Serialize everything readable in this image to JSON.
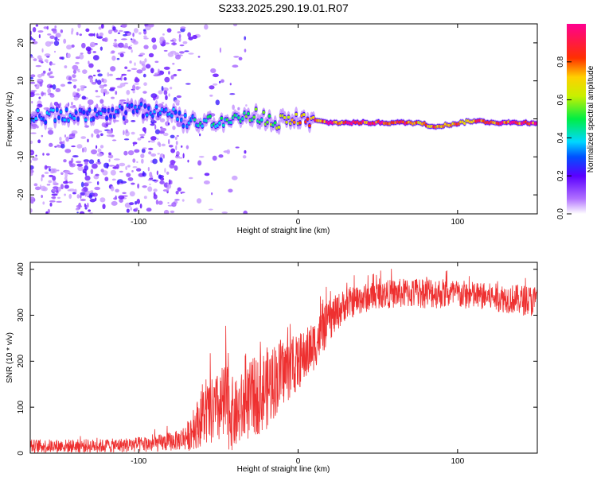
{
  "title": "S233.2025.290.19.01.R07",
  "chart_data": [
    {
      "type": "heatmap",
      "name": "spectrogram",
      "xlabel": "Height of straight line (km)",
      "ylabel": "Frequency (Hz)",
      "xlim": [
        -168,
        150
      ],
      "ylim": [
        -25,
        25
      ],
      "xticks": [
        -100,
        0,
        100
      ],
      "yticks": [
        -20,
        -10,
        0,
        10,
        20
      ],
      "colorbar": {
        "label": "Normalized spectral amplitude",
        "range": [
          0,
          1
        ],
        "ticks": [
          0.0,
          0.2,
          0.4,
          0.6,
          0.8
        ],
        "tick_labels": [
          "0.0",
          "0.2",
          "0.4",
          "0.6",
          "0.8"
        ]
      },
      "carrier_track": [
        {
          "x": -120,
          "f": 0.8,
          "amp": 0.35
        },
        {
          "x": -100,
          "f": 2.5,
          "amp": 0.3
        },
        {
          "x": -80,
          "f": 1.5,
          "amp": 0.35
        },
        {
          "x": -70,
          "f": -1.0,
          "amp": 0.4
        },
        {
          "x": -60,
          "f": -0.5,
          "amp": 0.45
        },
        {
          "x": -40,
          "f": -0.5,
          "amp": 0.5
        },
        {
          "x": -25,
          "f": 1.0,
          "amp": 0.55
        },
        {
          "x": -15,
          "f": -1.0,
          "amp": 0.6
        },
        {
          "x": 0,
          "f": 0.0,
          "amp": 0.75
        },
        {
          "x": 20,
          "f": -1.0,
          "amp": 0.95
        },
        {
          "x": 60,
          "f": -1.0,
          "amp": 0.95
        },
        {
          "x": 75,
          "f": -1.0,
          "amp": 0.85
        },
        {
          "x": 85,
          "f": -2.0,
          "amp": 0.9
        },
        {
          "x": 95,
          "f": -1.5,
          "amp": 0.8
        },
        {
          "x": 110,
          "f": -0.5,
          "amp": 0.85
        },
        {
          "x": 125,
          "f": -1.0,
          "amp": 0.95
        },
        {
          "x": 150,
          "f": -1.0,
          "amp": 0.95
        }
      ]
    },
    {
      "type": "line",
      "name": "snr",
      "xlabel": "Height of straight line (km)",
      "ylabel": "SNR (10 * v/v)",
      "xlim": [
        -168,
        150
      ],
      "ylim": [
        0,
        415
      ],
      "xticks": [
        -100,
        0,
        100
      ],
      "yticks": [
        0,
        100,
        200,
        300,
        400
      ],
      "color": "#ee3030",
      "envelope": [
        {
          "x": -168,
          "mean": 15,
          "spread": 15
        },
        {
          "x": -120,
          "mean": 16,
          "spread": 15
        },
        {
          "x": -90,
          "mean": 20,
          "spread": 18
        },
        {
          "x": -75,
          "mean": 28,
          "spread": 22
        },
        {
          "x": -68,
          "mean": 40,
          "spread": 35
        },
        {
          "x": -60,
          "mean": 80,
          "spread": 65
        },
        {
          "x": -50,
          "mean": 95,
          "spread": 80
        },
        {
          "x": -45,
          "mean": 105,
          "spread": 100
        },
        {
          "x": -40,
          "mean": 80,
          "spread": 75
        },
        {
          "x": -30,
          "mean": 115,
          "spread": 85
        },
        {
          "x": -20,
          "mean": 140,
          "spread": 90
        },
        {
          "x": -10,
          "mean": 175,
          "spread": 75
        },
        {
          "x": 0,
          "mean": 195,
          "spread": 60
        },
        {
          "x": 10,
          "mean": 235,
          "spread": 55
        },
        {
          "x": 20,
          "mean": 290,
          "spread": 45
        },
        {
          "x": 30,
          "mean": 325,
          "spread": 35
        },
        {
          "x": 50,
          "mean": 345,
          "spread": 30
        },
        {
          "x": 80,
          "mean": 350,
          "spread": 35
        },
        {
          "x": 120,
          "mean": 340,
          "spread": 30
        },
        {
          "x": 150,
          "mean": 330,
          "spread": 35
        }
      ]
    }
  ]
}
